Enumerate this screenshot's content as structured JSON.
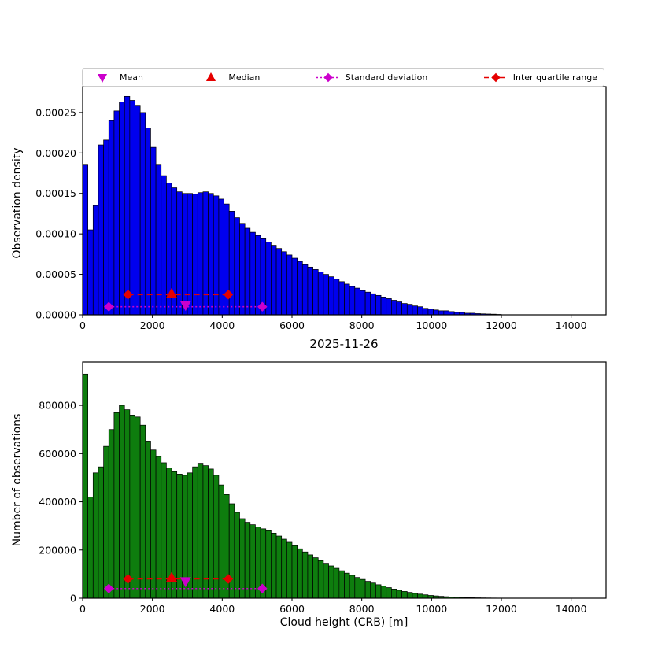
{
  "figure": {
    "date_label": "2025-11-26",
    "xlabel": "Cloud height (CRB) [m]",
    "background": "#ffffff"
  },
  "colors": {
    "bar_blue": "#0000ee",
    "bar_green": "#0e7d0e",
    "magenta": "#cc00cc",
    "red": "#e60000",
    "edge": "#000000"
  },
  "legend": {
    "items": [
      {
        "label": "Mean",
        "marker": "triangle-down",
        "color": "#cc00cc",
        "line": "none"
      },
      {
        "label": "Median",
        "marker": "triangle-up",
        "color": "#e60000",
        "line": "none"
      },
      {
        "label": "Standard deviation",
        "marker": "diamond",
        "color": "#cc00cc",
        "line": "dotted"
      },
      {
        "label": "Inter quartile range",
        "marker": "diamond",
        "color": "#e60000",
        "line": "dashed"
      }
    ]
  },
  "stats": {
    "mean": 2950,
    "median": 2550,
    "std_range": [
      750,
      5150
    ],
    "iqr_range": [
      1300,
      4175
    ]
  },
  "chart_data": [
    {
      "type": "bar",
      "title": "",
      "ylabel": "Observation density",
      "bar_color": "#0000ee",
      "grid": false,
      "legend_position": "top",
      "bin_start": 0,
      "bin_width": 150,
      "xlim": [
        0,
        15000
      ],
      "ylim": [
        0,
        0.000282
      ],
      "xticks": [
        0,
        2000,
        4000,
        6000,
        8000,
        10000,
        12000,
        14000
      ],
      "yticks": [
        0,
        5e-05,
        0.0001,
        0.00015,
        0.0002,
        0.00025
      ],
      "ytick_labels": [
        "0.00000",
        "0.00005",
        "0.00010",
        "0.00015",
        "0.00020",
        "0.00025"
      ],
      "values": [
        0.000185,
        0.000105,
        0.000135,
        0.00021,
        0.000216,
        0.00024,
        0.000252,
        0.000263,
        0.00027,
        0.000265,
        0.000258,
        0.00025,
        0.000231,
        0.000207,
        0.000185,
        0.000172,
        0.000163,
        0.000157,
        0.000152,
        0.00015,
        0.00015,
        0.000149,
        0.000151,
        0.000152,
        0.00015,
        0.000147,
        0.000143,
        0.000137,
        0.000128,
        0.00012,
        0.000113,
        0.000107,
        0.000102,
        9.8e-05,
        9.4e-05,
        9e-05,
        8.6e-05,
        8.2e-05,
        7.8e-05,
        7.4e-05,
        7e-05,
        6.6e-05,
        6.2e-05,
        5.9e-05,
        5.6e-05,
        5.3e-05,
        5e-05,
        4.7e-05,
        4.4e-05,
        4.1e-05,
        3.8e-05,
        3.5e-05,
        3.3e-05,
        3e-05,
        2.8e-05,
        2.6e-05,
        2.4e-05,
        2.2e-05,
        2e-05,
        1.8e-05,
        1.6e-05,
        1.4e-05,
        1.3e-05,
        1.1e-05,
        1e-05,
        8e-06,
        7e-06,
        6e-06,
        5e-06,
        5e-06,
        4e-06,
        3e-06,
        3e-06,
        2e-06,
        2e-06,
        1.5e-06,
        1.2e-06,
        1e-06,
        8e-07,
        5e-07
      ],
      "markers": {
        "std_y": 1e-05,
        "iqr_y": 2.5e-05,
        "median_y": 2.6e-05,
        "mean_y": 1.2e-05
      }
    },
    {
      "type": "bar",
      "title": "",
      "ylabel": "Number of observations",
      "bar_color": "#0e7d0e",
      "grid": false,
      "legend_position": "top",
      "bin_start": 0,
      "bin_width": 150,
      "xlim": [
        0,
        15000
      ],
      "ylim": [
        0,
        980000
      ],
      "xticks": [
        0,
        2000,
        4000,
        6000,
        8000,
        10000,
        12000,
        14000
      ],
      "yticks": [
        0,
        200000,
        400000,
        600000,
        800000
      ],
      "ytick_labels": [
        "0",
        "200000",
        "400000",
        "600000",
        "800000"
      ],
      "values": [
        930000,
        420000,
        520000,
        545000,
        630000,
        700000,
        770000,
        800000,
        782000,
        760000,
        752000,
        718000,
        652000,
        615000,
        588000,
        562000,
        540000,
        525000,
        515000,
        510000,
        520000,
        545000,
        560000,
        550000,
        536000,
        510000,
        470000,
        430000,
        392000,
        356000,
        330000,
        315000,
        305000,
        296000,
        288000,
        280000,
        270000,
        258000,
        245000,
        232000,
        218000,
        205000,
        192000,
        180000,
        168000,
        156000,
        145000,
        134000,
        124000,
        114000,
        104000,
        95000,
        86000,
        78000,
        70000,
        63000,
        56000,
        50000,
        44000,
        38000,
        33000,
        28000,
        24000,
        20000,
        17000,
        14000,
        11500,
        9500,
        7800,
        6300,
        5000,
        4000,
        3200,
        2500,
        2000,
        1600,
        1200,
        900,
        650,
        450
      ],
      "markers": {
        "std_y": 40000,
        "iqr_y": 80000,
        "median_y": 85000,
        "mean_y": 70000
      }
    }
  ]
}
